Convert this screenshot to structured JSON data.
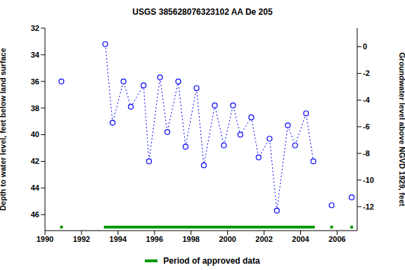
{
  "chart_data": {
    "type": "line",
    "title": "USGS 385628076323102 AA De 205",
    "y_label": "Depth to water level, feet below land surface",
    "y2_label": "Groundwater level above NGVD 1929, feet",
    "x": [
      1990.9,
      1992.0,
      1993.3,
      1993.7,
      1994.3,
      1994.7,
      1995.4,
      1995.7,
      1996.3,
      1996.7,
      1997.3,
      1997.7,
      1998.3,
      1998.7,
      1999.3,
      1999.8,
      2000.3,
      2000.7,
      2001.3,
      2001.7,
      2002.3,
      2002.7,
      2003.3,
      2003.7,
      2004.3,
      2004.7,
      2005.2,
      2005.7,
      2006.2,
      2006.8
    ],
    "values": [
      36.0,
      null,
      33.2,
      39.1,
      36.0,
      37.9,
      36.3,
      42.0,
      35.7,
      39.8,
      36.0,
      40.9,
      36.5,
      42.3,
      37.8,
      40.8,
      37.8,
      40.0,
      38.7,
      41.7,
      40.3,
      45.7,
      39.3,
      40.8,
      38.4,
      42.0,
      null,
      45.3,
      null,
      44.7
    ],
    "color": "#0000ff",
    "marker": "circle",
    "line_style": "dotted",
    "xlim": [
      1990,
      2007.1
    ],
    "xticks": [
      1990,
      1992,
      1994,
      1996,
      1998,
      2000,
      2002,
      2004,
      2006
    ],
    "ylim": [
      47.2,
      32
    ],
    "yticks": [
      32,
      34,
      36,
      38,
      40,
      42,
      44,
      46
    ],
    "y2lim": [
      -13.8,
      1.4
    ],
    "y2ticks": [
      0,
      -2,
      -4,
      -6,
      -8,
      -10,
      -12
    ],
    "approved_periods": {
      "name": "Period of approved data",
      "color": "#009900",
      "ranges": [
        [
          1990.9,
          1990.9
        ],
        [
          1993.3,
          2004.7
        ],
        [
          2005.7,
          2005.7
        ],
        [
          2006.8,
          2006.8
        ]
      ]
    }
  }
}
